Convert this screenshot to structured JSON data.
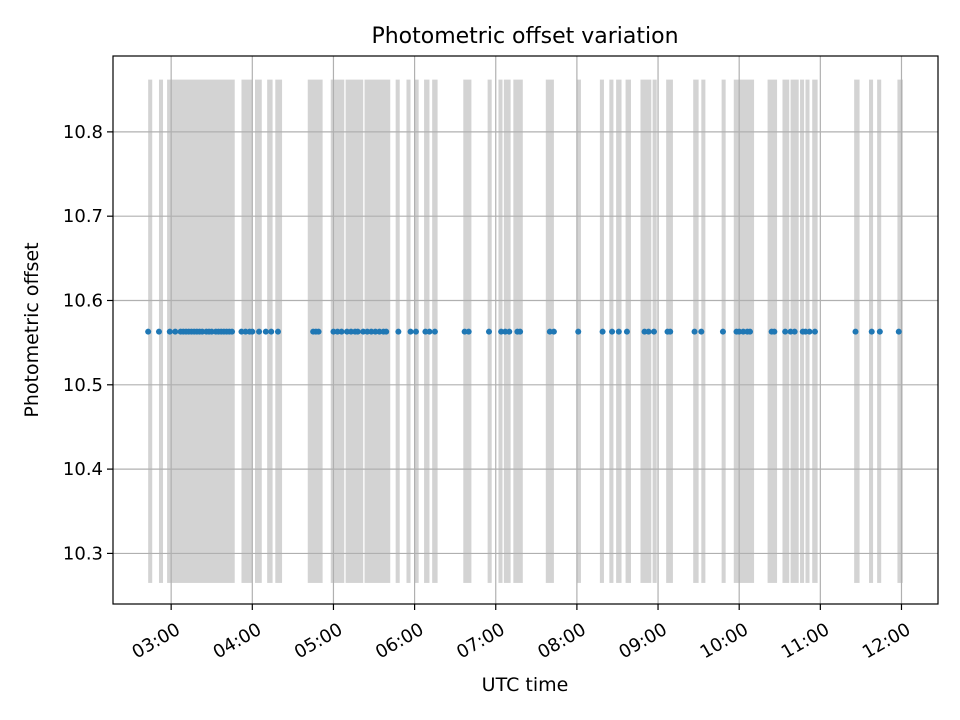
{
  "chart_data": {
    "type": "scatter",
    "title": "Photometric offset variation",
    "xlabel": "UTC time",
    "ylabel": "Photometric offset",
    "x_axis": {
      "kind": "time",
      "range": [
        "02:17",
        "12:27"
      ],
      "ticks": [
        "03:00",
        "04:00",
        "05:00",
        "06:00",
        "07:00",
        "08:00",
        "09:00",
        "10:00",
        "11:00",
        "12:00"
      ],
      "tick_label_rotation": "30deg"
    },
    "y_axis": {
      "range": [
        10.24,
        10.89
      ],
      "ticks": [
        10.3,
        10.4,
        10.5,
        10.6,
        10.7,
        10.8
      ],
      "tick_labels": [
        "10.3",
        "10.4",
        "10.5",
        "10.6",
        "10.7",
        "10.8"
      ]
    },
    "grid": true,
    "colors": {
      "points": "#1f77b4",
      "bands": "#d3d3d3"
    },
    "shaded_band_y_range": [
      10.265,
      10.862
    ],
    "shaded_intervals": [
      [
        "02:43",
        "02:46"
      ],
      [
        "02:51",
        "02:54"
      ],
      [
        "02:57",
        "03:47"
      ],
      [
        "03:52",
        "04:00"
      ],
      [
        "04:02",
        "04:07"
      ],
      [
        "04:11",
        "04:15"
      ],
      [
        "04:17",
        "04:22"
      ],
      [
        "04:41",
        "04:52"
      ],
      [
        "04:58",
        "05:08"
      ],
      [
        "05:09",
        "05:22"
      ],
      [
        "05:23",
        "05:42"
      ],
      [
        "05:46",
        "05:49"
      ],
      [
        "05:54",
        "05:57"
      ],
      [
        "06:00",
        "06:03"
      ],
      [
        "06:07",
        "06:11"
      ],
      [
        "06:13",
        "06:17"
      ],
      [
        "06:36",
        "06:42"
      ],
      [
        "06:54",
        "06:57"
      ],
      [
        "07:02",
        "07:05"
      ],
      [
        "07:06",
        "07:11"
      ],
      [
        "07:13",
        "07:20"
      ],
      [
        "07:37",
        "07:43"
      ],
      [
        "08:00",
        "08:03"
      ],
      [
        "08:17",
        "08:20"
      ],
      [
        "08:24",
        "08:27"
      ],
      [
        "08:29",
        "08:33"
      ],
      [
        "08:36",
        "08:40"
      ],
      [
        "08:47",
        "08:55"
      ],
      [
        "08:56",
        "08:59"
      ],
      [
        "09:06",
        "09:11"
      ],
      [
        "09:26",
        "09:30"
      ],
      [
        "09:32",
        "09:35"
      ],
      [
        "09:47",
        "09:50"
      ],
      [
        "09:56",
        "10:11"
      ],
      [
        "10:21",
        "10:28"
      ],
      [
        "10:32",
        "10:37"
      ],
      [
        "10:38",
        "10:44"
      ],
      [
        "10:45",
        "10:48"
      ],
      [
        "10:49",
        "10:52"
      ],
      [
        "10:54",
        "10:58"
      ],
      [
        "11:25",
        "11:29"
      ],
      [
        "11:36",
        "11:39"
      ],
      [
        "11:42",
        "11:45"
      ],
      [
        "11:57",
        "12:01"
      ]
    ],
    "series": [
      {
        "x": [
          "02:43",
          "02:51",
          "02:59",
          "03:03",
          "03:07",
          "03:09",
          "03:11",
          "03:13",
          "03:15",
          "03:17",
          "03:19",
          "03:21",
          "03:23",
          "03:26",
          "03:28",
          "03:30",
          "03:33",
          "03:35",
          "03:37",
          "03:39",
          "03:41",
          "03:43",
          "03:45",
          "03:52",
          "03:55",
          "03:58",
          "04:00",
          "04:05",
          "04:10",
          "04:14",
          "04:19",
          "04:45",
          "04:47",
          "04:49",
          "05:00",
          "05:03",
          "05:06",
          "05:10",
          "05:13",
          "05:16",
          "05:18",
          "05:22",
          "05:25",
          "05:28",
          "05:31",
          "05:34",
          "05:37",
          "05:39",
          "05:48",
          "05:57",
          "06:01",
          "06:08",
          "06:11",
          "06:15",
          "06:37",
          "06:40",
          "06:55",
          "07:04",
          "07:07",
          "07:10",
          "07:16",
          "07:18",
          "07:40",
          "07:43",
          "08:01",
          "08:19",
          "08:26",
          "08:31",
          "08:37",
          "08:50",
          "08:53",
          "08:57",
          "09:07",
          "09:09",
          "09:27",
          "09:32",
          "09:48",
          "09:58",
          "10:00",
          "10:03",
          "10:06",
          "10:08",
          "10:24",
          "10:26",
          "10:34",
          "10:38",
          "10:41",
          "10:47",
          "10:49",
          "10:52",
          "10:56",
          "11:26",
          "11:38",
          "11:44",
          "11:58"
        ],
        "y": [
          10.563,
          10.563,
          10.563,
          10.563,
          10.563,
          10.563,
          10.563,
          10.563,
          10.563,
          10.563,
          10.563,
          10.563,
          10.563,
          10.563,
          10.563,
          10.563,
          10.563,
          10.563,
          10.563,
          10.563,
          10.563,
          10.563,
          10.563,
          10.563,
          10.563,
          10.563,
          10.563,
          10.563,
          10.563,
          10.563,
          10.563,
          10.563,
          10.563,
          10.563,
          10.563,
          10.563,
          10.563,
          10.563,
          10.563,
          10.563,
          10.563,
          10.563,
          10.563,
          10.563,
          10.563,
          10.563,
          10.563,
          10.563,
          10.563,
          10.563,
          10.563,
          10.563,
          10.563,
          10.563,
          10.563,
          10.563,
          10.563,
          10.563,
          10.563,
          10.563,
          10.563,
          10.563,
          10.563,
          10.563,
          10.563,
          10.563,
          10.563,
          10.563,
          10.563,
          10.563,
          10.563,
          10.563,
          10.563,
          10.563,
          10.563,
          10.563,
          10.563,
          10.563,
          10.563,
          10.563,
          10.563,
          10.563,
          10.563,
          10.563,
          10.563,
          10.563,
          10.563,
          10.563,
          10.563,
          10.563,
          10.563,
          10.563,
          10.563,
          10.563,
          10.563
        ]
      }
    ]
  }
}
